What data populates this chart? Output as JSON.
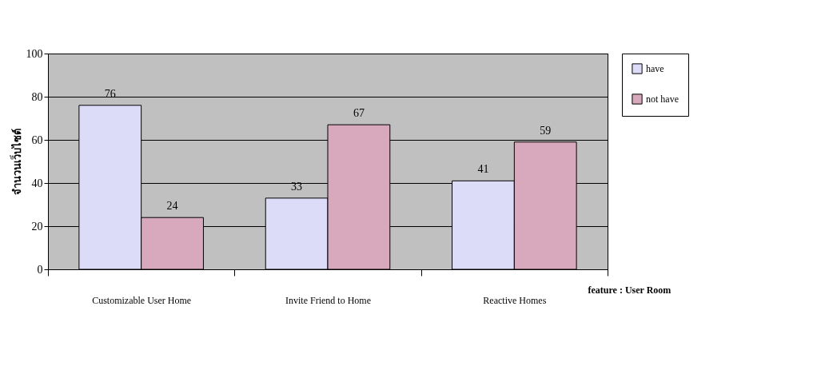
{
  "chart_data": {
    "type": "bar",
    "categories": [
      "Customizable User Home",
      "Invite Friend to Home",
      "Reactive Homes"
    ],
    "xlabel": "feature : User Room",
    "ylabel": "จำนวนเว็บไซต์",
    "series": [
      {
        "name": "have",
        "color": "#dcdcf8",
        "values": [
          76,
          33,
          41
        ]
      },
      {
        "name": "not have",
        "color": "#d8a8bc",
        "values": [
          24,
          67,
          59
        ]
      }
    ],
    "ylim": [
      0,
      100
    ],
    "yticks": [
      0,
      20,
      40,
      60,
      80,
      100
    ],
    "grid": "y",
    "legend": "right",
    "data_labels": true
  }
}
